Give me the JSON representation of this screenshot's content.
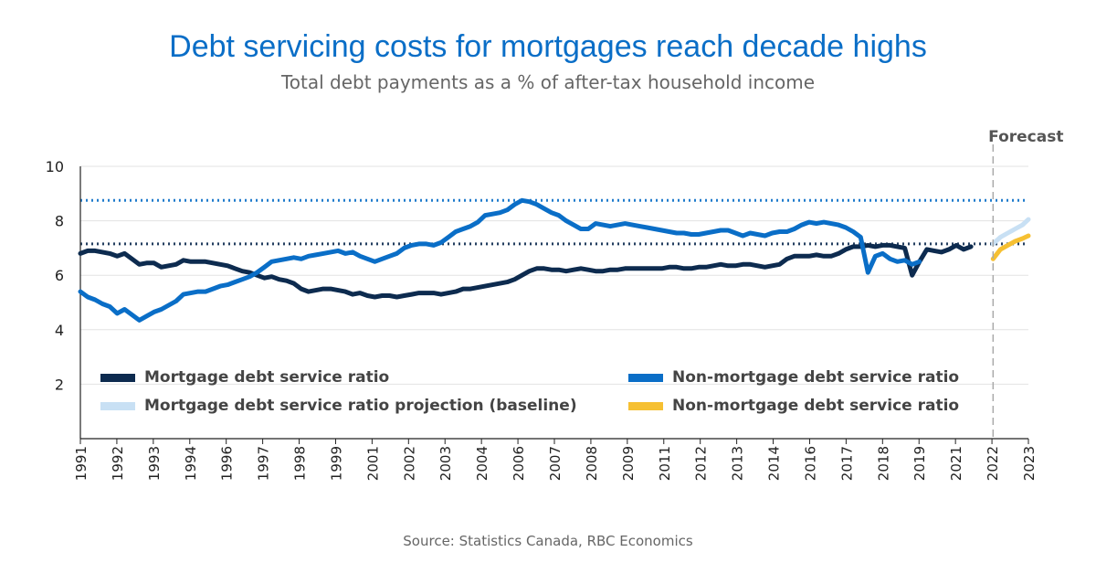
{
  "title": "Debt servicing costs for mortgages reach decade highs",
  "subtitle": "Total debt payments as a % of after-tax household income",
  "source": "Source: Statistics Canada, RBC Economics",
  "colors": {
    "mortgage": "#0d2b4f",
    "non_mortgage": "#0a6ec7",
    "mortgage_projection": "#c8e0f4",
    "non_mortgage_projection": "#f6c032",
    "forecast_line": "#aaaaaa"
  },
  "chart_data": {
    "type": "line",
    "title": "Debt servicing costs for mortgages reach decade highs",
    "subtitle": "Total debt payments as a % of after-tax household income",
    "ylim": [
      0,
      10
    ],
    "yticks": [
      2,
      4,
      6,
      8,
      10
    ],
    "xlim": [
      1991.0,
      2023.2
    ],
    "x_tick_labels": [
      "1991",
      "1992",
      "1993",
      "1994",
      "1996",
      "1997",
      "1998",
      "1999",
      "2001",
      "2002",
      "2003",
      "2004",
      "2006",
      "2007",
      "2008",
      "2009",
      "2011",
      "2012",
      "2013",
      "2014",
      "2016",
      "2017",
      "2018",
      "2019",
      "2021",
      "2022",
      "2023"
    ],
    "grid": true,
    "legend": "inside-bottom",
    "forecast": {
      "label": "Forecast",
      "x": 2022.0
    },
    "reference_lines": [
      {
        "value": 8.75,
        "series": "Non-mortgage debt service ratio"
      },
      {
        "value": 7.15,
        "series": "Mortgage debt service ratio"
      }
    ],
    "series": [
      {
        "name": "Mortgage debt service ratio",
        "color": "#0d2b4f",
        "style": "solid",
        "points": [
          [
            1991.0,
            6.8
          ],
          [
            1991.25,
            6.9
          ],
          [
            1991.5,
            6.9
          ],
          [
            1991.75,
            6.85
          ],
          [
            1992.0,
            6.8
          ],
          [
            1992.25,
            6.7
          ],
          [
            1992.5,
            6.8
          ],
          [
            1992.75,
            6.6
          ],
          [
            1993.0,
            6.4
          ],
          [
            1993.25,
            6.45
          ],
          [
            1993.5,
            6.45
          ],
          [
            1993.75,
            6.3
          ],
          [
            1994.0,
            6.35
          ],
          [
            1994.25,
            6.4
          ],
          [
            1994.5,
            6.55
          ],
          [
            1994.75,
            6.5
          ],
          [
            1995.0,
            6.5
          ],
          [
            1995.25,
            6.5
          ],
          [
            1995.5,
            6.45
          ],
          [
            1995.75,
            6.4
          ],
          [
            1996.0,
            6.35
          ],
          [
            1996.25,
            6.25
          ],
          [
            1996.5,
            6.15
          ],
          [
            1996.75,
            6.1
          ],
          [
            1997.0,
            6.0
          ],
          [
            1997.25,
            5.9
          ],
          [
            1997.5,
            5.95
          ],
          [
            1997.75,
            5.85
          ],
          [
            1998.0,
            5.8
          ],
          [
            1998.25,
            5.7
          ],
          [
            1998.5,
            5.5
          ],
          [
            1998.75,
            5.4
          ],
          [
            1999.0,
            5.45
          ],
          [
            1999.25,
            5.5
          ],
          [
            1999.5,
            5.5
          ],
          [
            1999.75,
            5.45
          ],
          [
            2000.0,
            5.4
          ],
          [
            2000.25,
            5.3
          ],
          [
            2000.5,
            5.35
          ],
          [
            2000.75,
            5.25
          ],
          [
            2001.0,
            5.2
          ],
          [
            2001.25,
            5.25
          ],
          [
            2001.5,
            5.25
          ],
          [
            2001.75,
            5.2
          ],
          [
            2002.0,
            5.25
          ],
          [
            2002.25,
            5.3
          ],
          [
            2002.5,
            5.35
          ],
          [
            2002.75,
            5.35
          ],
          [
            2003.0,
            5.35
          ],
          [
            2003.25,
            5.3
          ],
          [
            2003.5,
            5.35
          ],
          [
            2003.75,
            5.4
          ],
          [
            2004.0,
            5.5
          ],
          [
            2004.25,
            5.5
          ],
          [
            2004.5,
            5.55
          ],
          [
            2004.75,
            5.6
          ],
          [
            2005.0,
            5.65
          ],
          [
            2005.25,
            5.7
          ],
          [
            2005.5,
            5.75
          ],
          [
            2005.75,
            5.85
          ],
          [
            2006.0,
            6.0
          ],
          [
            2006.25,
            6.15
          ],
          [
            2006.5,
            6.25
          ],
          [
            2006.75,
            6.25
          ],
          [
            2007.0,
            6.2
          ],
          [
            2007.25,
            6.2
          ],
          [
            2007.5,
            6.15
          ],
          [
            2007.75,
            6.2
          ],
          [
            2008.0,
            6.25
          ],
          [
            2008.25,
            6.2
          ],
          [
            2008.5,
            6.15
          ],
          [
            2008.75,
            6.15
          ],
          [
            2009.0,
            6.2
          ],
          [
            2009.25,
            6.2
          ],
          [
            2009.5,
            6.25
          ],
          [
            2009.75,
            6.25
          ],
          [
            2010.0,
            6.25
          ],
          [
            2010.25,
            6.25
          ],
          [
            2010.5,
            6.25
          ],
          [
            2010.75,
            6.25
          ],
          [
            2011.0,
            6.3
          ],
          [
            2011.25,
            6.3
          ],
          [
            2011.5,
            6.25
          ],
          [
            2011.75,
            6.25
          ],
          [
            2012.0,
            6.3
          ],
          [
            2012.25,
            6.3
          ],
          [
            2012.5,
            6.35
          ],
          [
            2012.75,
            6.4
          ],
          [
            2013.0,
            6.35
          ],
          [
            2013.25,
            6.35
          ],
          [
            2013.5,
            6.4
          ],
          [
            2013.75,
            6.4
          ],
          [
            2014.0,
            6.35
          ],
          [
            2014.25,
            6.3
          ],
          [
            2014.5,
            6.35
          ],
          [
            2014.75,
            6.4
          ],
          [
            2015.0,
            6.6
          ],
          [
            2015.25,
            6.7
          ],
          [
            2015.5,
            6.7
          ],
          [
            2015.75,
            6.7
          ],
          [
            2016.0,
            6.75
          ],
          [
            2016.25,
            6.7
          ],
          [
            2016.5,
            6.7
          ],
          [
            2016.75,
            6.8
          ],
          [
            2017.0,
            6.95
          ],
          [
            2017.25,
            7.05
          ],
          [
            2017.5,
            7.05
          ],
          [
            2017.75,
            7.1
          ],
          [
            2018.0,
            7.05
          ],
          [
            2018.25,
            7.1
          ],
          [
            2018.5,
            7.1
          ],
          [
            2018.75,
            7.05
          ],
          [
            2019.0,
            7.0
          ],
          [
            2019.25,
            6.0
          ],
          [
            2019.5,
            6.5
          ],
          [
            2019.75,
            6.95
          ],
          [
            2020.0,
            6.9
          ],
          [
            2020.25,
            6.85
          ],
          [
            2020.5,
            6.95
          ],
          [
            2020.75,
            7.1
          ],
          [
            2021.0,
            6.95
          ],
          [
            2021.25,
            7.05
          ]
        ]
      },
      {
        "name": "Non-mortgage debt service ratio",
        "color": "#0a6ec7",
        "style": "solid",
        "points": [
          [
            1991.0,
            5.4
          ],
          [
            1991.25,
            5.2
          ],
          [
            1991.5,
            5.1
          ],
          [
            1991.75,
            4.95
          ],
          [
            1992.0,
            4.85
          ],
          [
            1992.25,
            4.6
          ],
          [
            1992.5,
            4.75
          ],
          [
            1992.75,
            4.55
          ],
          [
            1993.0,
            4.35
          ],
          [
            1993.25,
            4.5
          ],
          [
            1993.5,
            4.65
          ],
          [
            1993.75,
            4.75
          ],
          [
            1994.0,
            4.9
          ],
          [
            1994.25,
            5.05
          ],
          [
            1994.5,
            5.3
          ],
          [
            1994.75,
            5.35
          ],
          [
            1995.0,
            5.4
          ],
          [
            1995.25,
            5.4
          ],
          [
            1995.5,
            5.5
          ],
          [
            1995.75,
            5.6
          ],
          [
            1996.0,
            5.65
          ],
          [
            1996.25,
            5.75
          ],
          [
            1996.5,
            5.85
          ],
          [
            1996.75,
            5.95
          ],
          [
            1997.0,
            6.1
          ],
          [
            1997.25,
            6.3
          ],
          [
            1997.5,
            6.5
          ],
          [
            1997.75,
            6.55
          ],
          [
            1998.0,
            6.6
          ],
          [
            1998.25,
            6.65
          ],
          [
            1998.5,
            6.6
          ],
          [
            1998.75,
            6.7
          ],
          [
            1999.0,
            6.75
          ],
          [
            1999.25,
            6.8
          ],
          [
            1999.5,
            6.85
          ],
          [
            1999.75,
            6.9
          ],
          [
            2000.0,
            6.8
          ],
          [
            2000.25,
            6.85
          ],
          [
            2000.5,
            6.7
          ],
          [
            2000.75,
            6.6
          ],
          [
            2001.0,
            6.5
          ],
          [
            2001.25,
            6.6
          ],
          [
            2001.5,
            6.7
          ],
          [
            2001.75,
            6.8
          ],
          [
            2002.0,
            7.0
          ],
          [
            2002.25,
            7.1
          ],
          [
            2002.5,
            7.15
          ],
          [
            2002.75,
            7.15
          ],
          [
            2003.0,
            7.1
          ],
          [
            2003.25,
            7.2
          ],
          [
            2003.5,
            7.4
          ],
          [
            2003.75,
            7.6
          ],
          [
            2004.0,
            7.7
          ],
          [
            2004.25,
            7.8
          ],
          [
            2004.5,
            7.95
          ],
          [
            2004.75,
            8.2
          ],
          [
            2005.0,
            8.25
          ],
          [
            2005.25,
            8.3
          ],
          [
            2005.5,
            8.4
          ],
          [
            2005.75,
            8.6
          ],
          [
            2006.0,
            8.75
          ],
          [
            2006.25,
            8.7
          ],
          [
            2006.5,
            8.6
          ],
          [
            2006.75,
            8.45
          ],
          [
            2007.0,
            8.3
          ],
          [
            2007.25,
            8.2
          ],
          [
            2007.5,
            8.0
          ],
          [
            2007.75,
            7.85
          ],
          [
            2008.0,
            7.7
          ],
          [
            2008.25,
            7.7
          ],
          [
            2008.5,
            7.9
          ],
          [
            2008.75,
            7.85
          ],
          [
            2009.0,
            7.8
          ],
          [
            2009.25,
            7.85
          ],
          [
            2009.5,
            7.9
          ],
          [
            2009.75,
            7.85
          ],
          [
            2010.0,
            7.8
          ],
          [
            2010.25,
            7.75
          ],
          [
            2010.5,
            7.7
          ],
          [
            2010.75,
            7.65
          ],
          [
            2011.0,
            7.6
          ],
          [
            2011.25,
            7.55
          ],
          [
            2011.5,
            7.55
          ],
          [
            2011.75,
            7.5
          ],
          [
            2012.0,
            7.5
          ],
          [
            2012.25,
            7.55
          ],
          [
            2012.5,
            7.6
          ],
          [
            2012.75,
            7.65
          ],
          [
            2013.0,
            7.65
          ],
          [
            2013.25,
            7.55
          ],
          [
            2013.5,
            7.45
          ],
          [
            2013.75,
            7.55
          ],
          [
            2014.0,
            7.5
          ],
          [
            2014.25,
            7.45
          ],
          [
            2014.5,
            7.55
          ],
          [
            2014.75,
            7.6
          ],
          [
            2015.0,
            7.6
          ],
          [
            2015.25,
            7.7
          ],
          [
            2015.5,
            7.85
          ],
          [
            2015.75,
            7.95
          ],
          [
            2016.0,
            7.9
          ],
          [
            2016.25,
            7.95
          ],
          [
            2016.5,
            7.9
          ],
          [
            2016.75,
            7.85
          ],
          [
            2017.0,
            7.75
          ],
          [
            2017.25,
            7.6
          ],
          [
            2017.5,
            7.4
          ],
          [
            2017.75,
            6.1
          ],
          [
            2018.0,
            6.7
          ],
          [
            2018.25,
            6.8
          ],
          [
            2018.5,
            6.6
          ],
          [
            2018.75,
            6.5
          ],
          [
            2019.0,
            6.55
          ],
          [
            2019.25,
            6.4
          ],
          [
            2019.5,
            6.5
          ]
        ]
      },
      {
        "name": "Mortgage debt service ratio projection (baseline)",
        "color": "#c8e0f4",
        "style": "solid",
        "points": [
          [
            2022.0,
            7.15
          ],
          [
            2022.25,
            7.4
          ],
          [
            2022.5,
            7.55
          ],
          [
            2022.75,
            7.7
          ],
          [
            2023.0,
            7.85
          ],
          [
            2023.2,
            8.05
          ]
        ]
      },
      {
        "name": "Non-mortgage debt service ratio",
        "color": "#f6c032",
        "style": "solid",
        "points": [
          [
            2022.0,
            6.6
          ],
          [
            2022.25,
            6.95
          ],
          [
            2022.5,
            7.1
          ],
          [
            2022.75,
            7.25
          ],
          [
            2023.0,
            7.35
          ],
          [
            2023.2,
            7.45
          ]
        ]
      }
    ]
  },
  "legend": [
    {
      "label": "Mortgage debt service ratio",
      "color": "#0d2b4f"
    },
    {
      "label": "Non-mortgage debt service ratio",
      "color": "#0a6ec7"
    },
    {
      "label": "Mortgage debt service ratio projection (baseline)",
      "color": "#c8e0f4"
    },
    {
      "label": "Non-mortgage debt service ratio",
      "color": "#f6c032"
    }
  ]
}
